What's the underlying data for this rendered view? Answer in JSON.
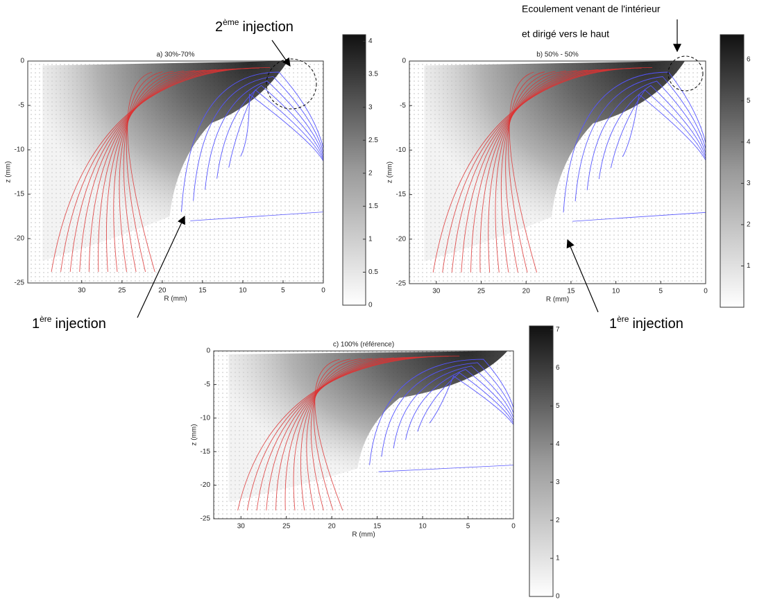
{
  "chart_data": [
    {
      "type": "vector-field",
      "title": "a) 30%-70%",
      "xlabel": "R (mm)",
      "ylabel": "z (mm)",
      "xlim": [
        36.7,
        0
      ],
      "xticks": [
        30,
        25,
        20,
        15,
        10,
        5,
        0
      ],
      "ylim": [
        -25,
        0
      ],
      "yticks": [
        0,
        -5,
        -10,
        -15,
        -20,
        -25
      ],
      "clim": [
        0,
        4.1
      ],
      "cticks": [
        0,
        0.5,
        1,
        1.5,
        2,
        2.5,
        3,
        3.5,
        4
      ],
      "annotations": [
        {
          "number": "2",
          "superscript": "ème",
          "text": "injection"
        },
        {
          "number": "1",
          "superscript": "ère",
          "text": "injection"
        }
      ]
    },
    {
      "type": "vector-field",
      "title": "b) 50% - 50%",
      "xlabel": "R (mm)",
      "ylabel": "z (mm)",
      "xlim": [
        33,
        0
      ],
      "xticks": [
        30,
        25,
        20,
        15,
        10,
        5,
        0
      ],
      "ylim": [
        -25,
        0
      ],
      "yticks": [
        0,
        -5,
        -10,
        -15,
        -20,
        -25
      ],
      "clim": [
        0,
        6.6
      ],
      "cticks": [
        1,
        2,
        3,
        4,
        5,
        6
      ],
      "annotations": [
        {
          "lines": [
            "Ecoulement venant de l'intérieur",
            "et dirigé vers le haut"
          ]
        },
        {
          "number": "1",
          "superscript": "ère",
          "text": "injection"
        }
      ]
    },
    {
      "type": "vector-field",
      "title": "c) 100% (référence)",
      "xlabel": "R (mm)",
      "ylabel": "z (mm)",
      "xlim": [
        33,
        0
      ],
      "xticks": [
        30,
        25,
        20,
        15,
        10,
        5,
        0
      ],
      "ylim": [
        -25,
        0
      ],
      "yticks": [
        0,
        -5,
        -10,
        -15,
        -20,
        -25
      ],
      "clim": [
        0,
        7.1
      ],
      "cticks": [
        0,
        1,
        2,
        3,
        4,
        5,
        6,
        7
      ]
    }
  ]
}
